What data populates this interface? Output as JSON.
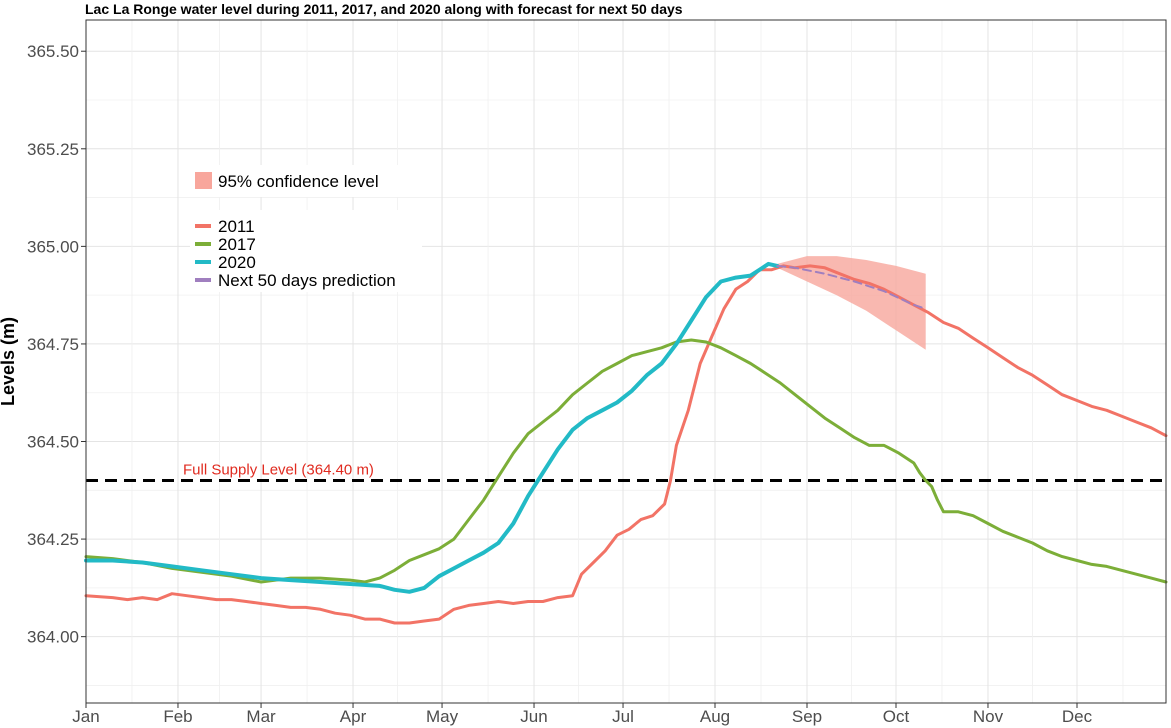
{
  "chart_data": {
    "type": "line",
    "title": "Lac La Ronge water level during 2011, 2017, and 2020 along with forecast for next 50 days",
    "xlabel": "",
    "ylabel": "Levels (m)",
    "xlim": [
      1,
      365
    ],
    "ylim": [
      363.83,
      365.58
    ],
    "yticks": [
      364.0,
      364.25,
      364.5,
      364.75,
      365.0,
      365.25,
      365.5
    ],
    "ytick_labels": [
      "364.00",
      "364.25",
      "364.50",
      "364.75",
      "365.00",
      "365.25",
      "365.50"
    ],
    "month_labels": [
      "Jan",
      "Feb",
      "Mar",
      "Apr",
      "May",
      "Jun",
      "Jul",
      "Aug",
      "Sep",
      "Oct",
      "Nov",
      "Dec"
    ],
    "month_days": [
      1,
      32,
      60,
      91,
      121,
      152,
      182,
      213,
      244,
      274,
      305,
      335
    ],
    "grid": true,
    "legend_placement": "top-left",
    "series": [
      {
        "name": "2011",
        "color": "#F27366",
        "x": [
          1,
          10,
          15,
          20,
          25,
          30,
          35,
          40,
          45,
          50,
          55,
          60,
          65,
          70,
          75,
          80,
          85,
          90,
          95,
          100,
          105,
          110,
          115,
          120,
          125,
          130,
          135,
          140,
          145,
          150,
          155,
          160,
          165,
          168,
          172,
          176,
          180,
          184,
          188,
          192,
          196,
          198,
          200,
          204,
          208,
          212,
          216,
          220,
          224,
          228,
          232,
          236,
          240,
          245,
          250,
          255,
          260,
          265,
          270,
          275,
          280,
          285,
          290,
          295,
          300,
          305,
          310,
          315,
          320,
          325,
          330,
          335,
          340,
          345,
          350,
          355,
          360,
          365
        ],
        "values": [
          364.105,
          364.1,
          364.095,
          364.1,
          364.095,
          364.11,
          364.105,
          364.1,
          364.095,
          364.095,
          364.09,
          364.085,
          364.08,
          364.075,
          364.075,
          364.07,
          364.06,
          364.055,
          364.045,
          364.045,
          364.035,
          364.035,
          364.04,
          364.045,
          364.07,
          364.08,
          364.085,
          364.09,
          364.085,
          364.09,
          364.09,
          364.1,
          364.105,
          364.16,
          364.19,
          364.22,
          364.26,
          364.275,
          364.3,
          364.31,
          364.34,
          364.4,
          364.49,
          364.58,
          364.7,
          364.77,
          364.84,
          364.89,
          364.91,
          364.94,
          364.94,
          364.95,
          364.945,
          364.95,
          364.945,
          364.93,
          364.915,
          364.905,
          364.89,
          364.87,
          364.85,
          364.83,
          364.805,
          364.79,
          364.765,
          364.74,
          364.715,
          364.69,
          364.67,
          364.645,
          364.62,
          364.605,
          364.59,
          364.58,
          364.565,
          364.55,
          364.535,
          364.515
        ]
      },
      {
        "name": "2017",
        "color": "#7CAE38",
        "x": [
          1,
          10,
          20,
          30,
          40,
          50,
          60,
          70,
          80,
          90,
          95,
          100,
          105,
          110,
          115,
          120,
          125,
          130,
          135,
          140,
          145,
          150,
          155,
          160,
          165,
          170,
          175,
          180,
          185,
          190,
          195,
          200,
          205,
          210,
          215,
          220,
          225,
          230,
          235,
          240,
          245,
          250,
          255,
          260,
          265,
          270,
          275,
          280,
          282,
          284,
          286,
          288,
          290,
          295,
          300,
          305,
          310,
          315,
          320,
          325,
          330,
          335,
          340,
          345,
          350,
          355,
          360,
          365
        ],
        "values": [
          364.205,
          364.2,
          364.19,
          364.175,
          364.165,
          364.155,
          364.14,
          364.15,
          364.15,
          364.145,
          364.14,
          364.15,
          364.17,
          364.195,
          364.21,
          364.225,
          364.25,
          364.3,
          364.35,
          364.41,
          364.47,
          364.52,
          364.55,
          364.58,
          364.62,
          364.65,
          364.68,
          364.7,
          364.72,
          364.73,
          364.74,
          364.755,
          364.76,
          364.755,
          364.74,
          364.72,
          364.7,
          364.675,
          364.65,
          364.62,
          364.59,
          364.56,
          364.535,
          364.51,
          364.49,
          364.49,
          364.47,
          364.445,
          364.42,
          364.4,
          364.385,
          364.35,
          364.32,
          364.32,
          364.31,
          364.29,
          364.27,
          364.255,
          364.24,
          364.22,
          364.205,
          364.195,
          364.185,
          364.18,
          364.17,
          364.16,
          364.15,
          364.14
        ]
      },
      {
        "name": "2020",
        "color": "#22BAC6",
        "x": [
          1,
          10,
          20,
          30,
          40,
          50,
          60,
          70,
          80,
          90,
          100,
          105,
          110,
          115,
          120,
          125,
          130,
          135,
          140,
          145,
          150,
          155,
          160,
          165,
          170,
          175,
          180,
          185,
          190,
          195,
          200,
          205,
          210,
          215,
          220,
          225,
          228,
          231,
          234
        ],
        "values": [
          364.195,
          364.195,
          364.19,
          364.18,
          364.17,
          364.16,
          364.15,
          364.145,
          364.14,
          364.135,
          364.13,
          364.12,
          364.115,
          364.125,
          364.155,
          364.175,
          364.195,
          364.215,
          364.24,
          364.29,
          364.36,
          364.42,
          364.48,
          364.53,
          364.56,
          364.58,
          364.6,
          364.63,
          364.67,
          364.7,
          364.75,
          364.81,
          364.87,
          364.91,
          364.92,
          364.925,
          364.94,
          364.955,
          364.95
        ]
      },
      {
        "name": "Next 50 days prediction",
        "color": "#A07FBF",
        "dashed": true,
        "x": [
          234,
          240,
          250,
          260,
          270,
          280,
          284
        ],
        "values": [
          364.95,
          364.945,
          364.93,
          364.91,
          364.885,
          364.85,
          364.84
        ]
      }
    ],
    "confidence_band": {
      "name": "95% confidence level",
      "color": "#F8A69C",
      "x": [
        234,
        244,
        254,
        264,
        274,
        284
      ],
      "upper": [
        364.955,
        364.975,
        364.975,
        364.965,
        364.95,
        364.93
      ],
      "lower": [
        364.945,
        364.91,
        364.875,
        364.835,
        364.785,
        364.735
      ]
    },
    "reference_line": {
      "value": 364.4,
      "label": "Full Supply Level (364.40 m)",
      "line_color": "#000000",
      "label_color": "#E02B20"
    },
    "legend": {
      "band_label": "95% confidence level",
      "line_labels": [
        "2011",
        "2017",
        "2020",
        "Next 50 days prediction"
      ]
    }
  }
}
